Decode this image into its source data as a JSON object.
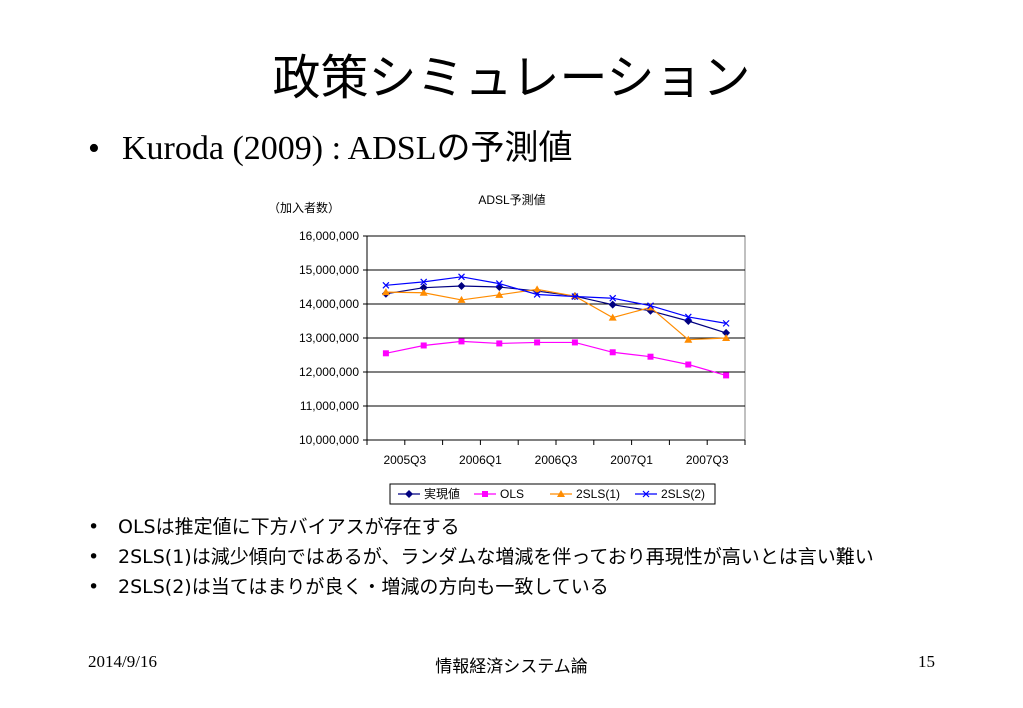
{
  "slide": {
    "title": "政策シミュレーション",
    "bullet_main": "Kuroda (2009) : ADSLの予測値",
    "sub_bullets": [
      "OLSは推定値に下方バイアスが存在する",
      "2SLS(1)は減少傾向ではあるが、ランダムな増減を伴っており再現性が高いとは言い難い",
      "2SLS(2)は当てはまりが良く・増減の方向も一致している"
    ],
    "footer": {
      "date": "2014/9/16",
      "course": "情報経済システム論",
      "page": "15"
    }
  },
  "chart_data": {
    "type": "line",
    "title": "ADSL予測値",
    "ylabel": "（加入者数）",
    "ylim": [
      10000000,
      16000000
    ],
    "yticks": [
      10000000,
      11000000,
      12000000,
      13000000,
      14000000,
      15000000,
      16000000
    ],
    "ytick_labels": [
      "10,000,000",
      "11,000,000",
      "12,000,000",
      "13,000,000",
      "14,000,000",
      "15,000,000",
      "16,000,000"
    ],
    "x_tick_labels": [
      "2005Q3",
      "2006Q1",
      "2006Q3",
      "2007Q1",
      "2007Q3"
    ],
    "n_points": 10,
    "legend_position": "bottom",
    "series": [
      {
        "name": "実現値",
        "color": "#000080",
        "marker": "diamond",
        "values": [
          14300000,
          14480000,
          14530000,
          14500000,
          14380000,
          14230000,
          13980000,
          13800000,
          13500000,
          13150000
        ]
      },
      {
        "name": "OLS",
        "color": "#ff00ff",
        "marker": "square",
        "values": [
          12550000,
          12780000,
          12900000,
          12840000,
          12870000,
          12870000,
          12580000,
          12450000,
          12220000,
          11900000
        ]
      },
      {
        "name": "2SLS(1)",
        "color": "#ff8c00",
        "marker": "triangle",
        "values": [
          14350000,
          14330000,
          14120000,
          14270000,
          14430000,
          14230000,
          13600000,
          13900000,
          12950000,
          13000000
        ]
      },
      {
        "name": "2SLS(2)",
        "color": "#0000ff",
        "marker": "x",
        "values": [
          14550000,
          14650000,
          14800000,
          14600000,
          14280000,
          14220000,
          14170000,
          13950000,
          13620000,
          13430000
        ]
      }
    ]
  }
}
